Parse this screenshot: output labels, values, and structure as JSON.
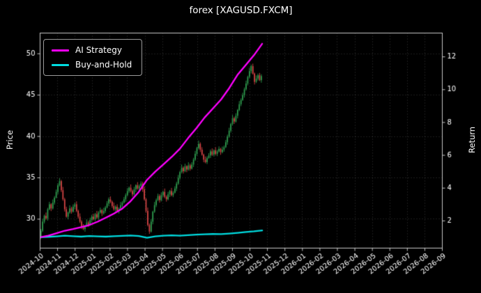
{
  "title": "forex [XAGUSD.FXCM]",
  "legend": {
    "items": [
      {
        "label": "AI Strategy",
        "color": "#ff00ff"
      },
      {
        "label": "Buy-and-Hold",
        "color": "#00dce0"
      }
    ]
  },
  "colors": {
    "background": "#000000",
    "text": "#ffffff",
    "spine": "#c8c8c8"
  },
  "chart_data": {
    "type": "mixed",
    "title": "forex [XAGUSD.FXCM]",
    "x_axis": {
      "tick_labels": [
        "2024-10",
        "2024-11",
        "2024-12",
        "2025-01",
        "2025-02",
        "2025-03",
        "2025-04",
        "2025-05",
        "2025-06",
        "2025-07",
        "2025-08",
        "2025-09",
        "2025-10",
        "2025-11",
        "2025-12",
        "2026-01",
        "2026-02",
        "2026-03",
        "2026-04",
        "2026-05",
        "2026-06",
        "2026-07",
        "2026-08",
        "2026-09"
      ],
      "data_start": "2024-10",
      "data_end": "2025-11",
      "data_span_months": 12.7
    },
    "left_axis": {
      "label": "Price",
      "ticks": [
        30,
        35,
        40,
        45,
        50
      ],
      "range": [
        26.5,
        52.5
      ]
    },
    "right_axis": {
      "label": "Return",
      "ticks": [
        2,
        4,
        6,
        8,
        10,
        12
      ],
      "range": [
        0.34,
        13.45
      ]
    },
    "grid": {
      "color": "rgba(255,255,255,0.22)",
      "style": "dotted"
    },
    "wick_pattern": [
      0.22,
      0.35,
      0.15,
      0.4,
      0.18,
      0.3,
      0.12,
      0.38,
      0.2,
      0.28
    ],
    "series": [
      {
        "name": "XAGUSD price",
        "type": "candlestick",
        "axis": "left",
        "up_color": "#2f9e4f",
        "down_color": "#d64545",
        "closes": [
          27.9,
          28.6,
          29.7,
          30.4,
          30.1,
          31.2,
          31.8,
          31.3,
          32.0,
          32.6,
          33.3,
          34.1,
          34.6,
          33.5,
          32.4,
          31.2,
          30.3,
          30.8,
          31.3,
          30.9,
          31.5,
          31.8,
          31.0,
          30.3,
          29.7,
          29.1,
          28.8,
          29.2,
          29.6,
          29.3,
          29.9,
          30.3,
          30.0,
          30.6,
          30.2,
          30.8,
          31.1,
          30.7,
          31.0,
          31.4,
          31.9,
          32.4,
          32.1,
          31.6,
          31.2,
          31.5,
          31.0,
          31.3,
          31.7,
          32.0,
          32.4,
          32.9,
          33.4,
          33.8,
          33.4,
          33.0,
          33.6,
          34.1,
          33.7,
          34.0,
          34.3,
          33.6,
          32.4,
          31.0,
          29.3,
          28.5,
          29.7,
          30.9,
          31.7,
          32.3,
          32.8,
          32.3,
          32.9,
          33.3,
          32.7,
          32.4,
          33.0,
          33.4,
          32.9,
          33.2,
          33.7,
          34.3,
          35.0,
          35.7,
          36.2,
          35.8,
          36.4,
          36.0,
          36.5,
          36.1,
          36.6,
          37.2,
          37.9,
          38.6,
          39.1,
          38.4,
          37.8,
          37.2,
          36.9,
          37.4,
          37.7,
          38.2,
          37.8,
          38.3,
          37.9,
          38.2,
          38.5,
          38.1,
          38.4,
          38.7,
          39.3,
          40.0,
          40.7,
          41.5,
          42.2,
          41.8,
          42.5,
          43.2,
          43.9,
          44.4,
          45.0,
          45.7,
          46.4,
          47.2,
          47.9,
          48.5,
          47.6,
          46.6,
          47.0,
          47.4,
          46.8,
          47.3
        ]
      },
      {
        "name": "AI Strategy",
        "type": "line",
        "axis": "right",
        "color": "#ff00ff",
        "values": [
          1.0,
          1.1,
          1.25,
          1.4,
          1.5,
          1.62,
          1.75,
          1.95,
          2.2,
          2.45,
          2.75,
          3.2,
          3.77,
          4.5,
          5.0,
          5.45,
          5.9,
          6.4,
          7.05,
          7.65,
          8.3,
          8.85,
          9.4,
          10.1,
          10.9,
          11.5,
          12.1,
          12.8
        ]
      },
      {
        "name": "Buy-and-Hold",
        "type": "line",
        "axis": "right",
        "color": "#00dce0",
        "values": [
          1.0,
          1.03,
          1.06,
          1.1,
          1.07,
          1.04,
          1.08,
          1.06,
          1.04,
          1.07,
          1.09,
          1.11,
          1.08,
          0.97,
          1.06,
          1.1,
          1.12,
          1.1,
          1.13,
          1.16,
          1.18,
          1.2,
          1.19,
          1.23,
          1.27,
          1.32,
          1.36,
          1.42
        ]
      }
    ]
  }
}
